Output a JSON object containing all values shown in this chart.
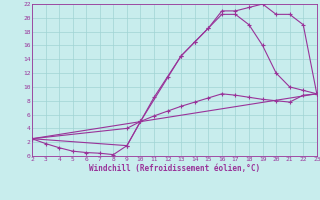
{
  "xlabel": "Windchill (Refroidissement éolien,°C)",
  "bg_color": "#c8eded",
  "grid_color": "#a0d4d4",
  "line_color": "#993399",
  "xlim": [
    2,
    23
  ],
  "ylim": [
    0,
    22
  ],
  "xticks": [
    2,
    3,
    4,
    5,
    6,
    7,
    8,
    9,
    10,
    11,
    12,
    13,
    14,
    15,
    16,
    17,
    18,
    19,
    20,
    21,
    22,
    23
  ],
  "yticks": [
    0,
    2,
    4,
    6,
    8,
    10,
    12,
    14,
    16,
    18,
    20,
    22
  ],
  "line1_x": [
    2,
    3,
    4,
    5,
    6,
    7,
    8,
    9,
    10,
    11,
    12,
    13,
    14,
    15,
    16,
    17,
    18,
    19,
    20,
    21,
    22,
    23
  ],
  "line1_y": [
    2.5,
    1.8,
    1.2,
    0.7,
    0.5,
    0.4,
    0.2,
    1.5,
    5.0,
    8.5,
    11.5,
    14.5,
    16.5,
    18.5,
    21.0,
    21.0,
    21.5,
    22.0,
    20.5,
    20.5,
    19.0,
    9.0
  ],
  "line2_x": [
    2,
    9,
    10,
    13,
    14,
    15,
    16,
    17,
    18,
    19,
    20,
    21,
    22,
    23
  ],
  "line2_y": [
    2.5,
    1.5,
    5.0,
    14.5,
    16.5,
    18.5,
    20.5,
    20.5,
    19.0,
    16.0,
    12.0,
    10.0,
    9.5,
    9.0
  ],
  "line3_x": [
    2,
    23
  ],
  "line3_y": [
    2.5,
    9.0
  ],
  "line4_x": [
    2,
    9,
    10,
    11,
    12,
    13,
    14,
    15,
    16,
    17,
    18,
    19,
    20,
    21,
    22,
    23
  ],
  "line4_y": [
    2.5,
    4.0,
    5.0,
    5.8,
    6.5,
    7.2,
    7.8,
    8.4,
    9.0,
    8.8,
    8.5,
    8.2,
    8.0,
    7.8,
    8.8,
    9.0
  ]
}
